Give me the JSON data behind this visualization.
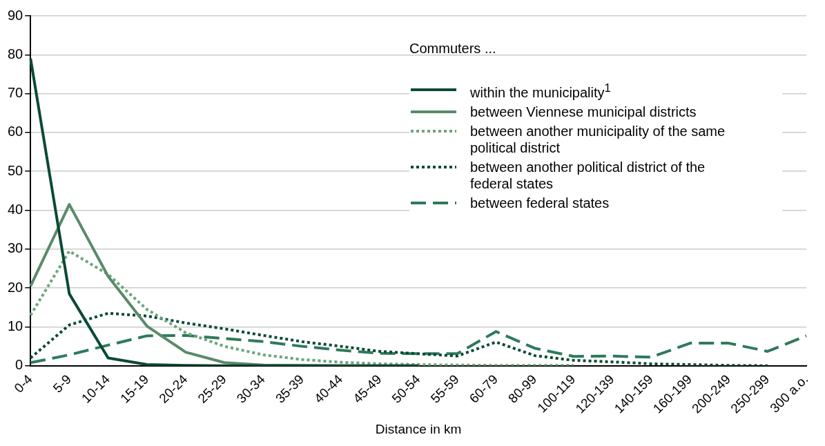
{
  "chart_data": {
    "type": "line",
    "xlabel": "Distance in km",
    "legend_title": "Commuters ...",
    "legend": "top right",
    "grid": "y",
    "categories": [
      "0-4",
      "5-9",
      "10-14",
      "15-19",
      "20-24",
      "25-29",
      "30-34",
      "35-39",
      "40-44",
      "45-49",
      "50-54",
      "55-59",
      "60-79",
      "80-99",
      "100-119",
      "120-139",
      "140-159",
      "160-199",
      "200-249",
      "250-299",
      "300 a.o."
    ],
    "ylim": [
      0,
      90
    ],
    "yticks": [
      0,
      10,
      20,
      30,
      40,
      50,
      60,
      70,
      80,
      90
    ],
    "series": [
      {
        "name": "within the municipality$^{1}$",
        "color": "#0b4a35",
        "line_style": "solid",
        "values": [
          79,
          18.5,
          2,
          0.3,
          0.1,
          0,
          0,
          0,
          0,
          0,
          0,
          null,
          null,
          null,
          null,
          null,
          null,
          null,
          null,
          null,
          null
        ]
      },
      {
        "name": "between Viennese municipal districts",
        "color": "#5a8a6a",
        "line_style": "solid",
        "values": [
          20.5,
          41.5,
          23,
          10.2,
          3.5,
          0.8,
          0.2,
          0.1,
          0,
          0,
          0,
          null,
          null,
          null,
          null,
          null,
          null,
          null,
          null,
          null,
          null
        ]
      },
      {
        "name": "between another municipality of the same political district",
        "color": "#6aa57a",
        "line_style": "dotted",
        "values": [
          13,
          29.5,
          23.5,
          14.5,
          8.5,
          5,
          2.8,
          1.6,
          0.9,
          0.5,
          0.3,
          0.2,
          0.1,
          0.1,
          0.1,
          null,
          null,
          null,
          null,
          null,
          null
        ]
      },
      {
        "name": "between another political district of the federal states",
        "color": "#0b4a35",
        "line_style": "dotted",
        "values": [
          2,
          10.5,
          13.5,
          12.8,
          11,
          9.5,
          7.8,
          6.2,
          5,
          3.7,
          3.1,
          2.5,
          6.1,
          2.6,
          1.4,
          1,
          0.5,
          0.3,
          0.1,
          0,
          null
        ]
      },
      {
        "name": "between federal states",
        "color": "#2e7a5a",
        "line_style": "dashed",
        "values": [
          0.8,
          2.8,
          5.3,
          7.7,
          7.8,
          7,
          6.2,
          5,
          4,
          3.2,
          3.1,
          3.1,
          8.8,
          4.5,
          2.4,
          2.5,
          2.2,
          5.8,
          5.8,
          3.7,
          7.7
        ]
      }
    ]
  }
}
